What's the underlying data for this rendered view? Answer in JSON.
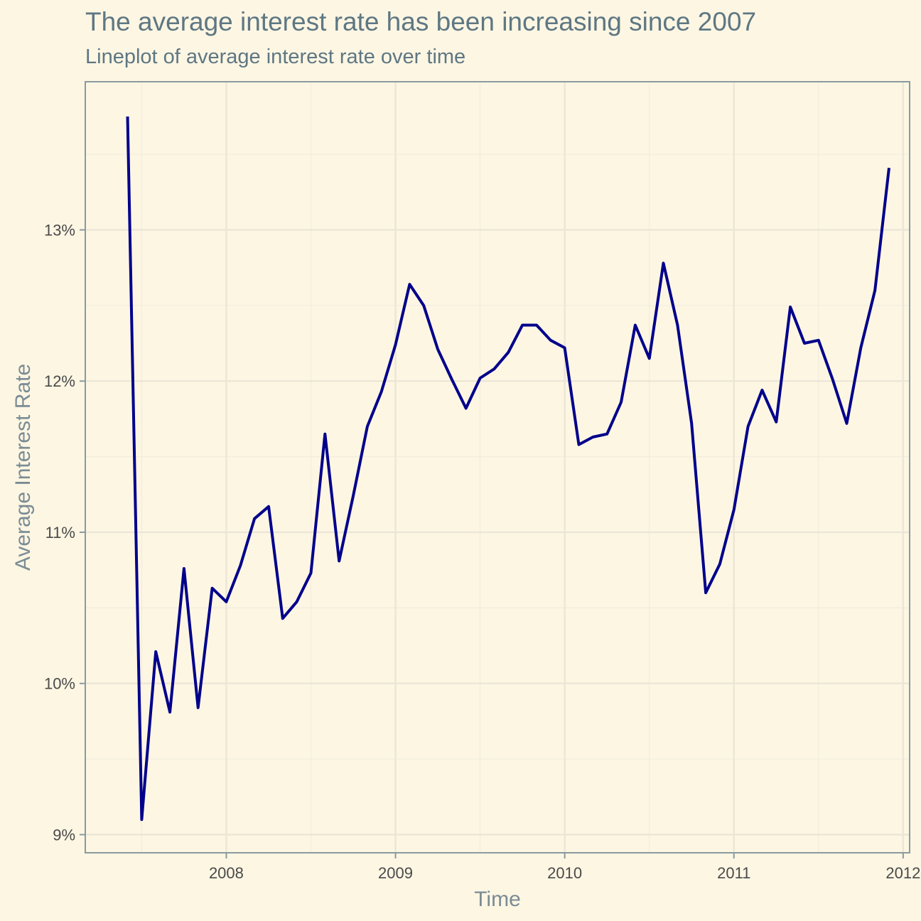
{
  "chart_data": {
    "type": "line",
    "title": "The average interest rate has been increasing since 2007",
    "subtitle": "Lineplot of average interest rate over time",
    "xlabel": "Time",
    "ylabel": "Average Interest Rate",
    "x_ticks": [
      "2008",
      "2009",
      "2010",
      "2011",
      "2012"
    ],
    "y_ticks": [
      "9%",
      "10%",
      "11%",
      "12%",
      "13%"
    ],
    "xlim": [
      "2007-03-01",
      "2012-01-15"
    ],
    "ylim": [
      8.88,
      13.98
    ],
    "grid": true,
    "line_color": "#00008B",
    "series": [
      {
        "x": [
          "2007-06",
          "2007-07",
          "2007-08",
          "2007-09",
          "2007-10",
          "2007-11",
          "2007-12",
          "2008-01",
          "2008-02",
          "2008-03",
          "2008-04",
          "2008-05",
          "2008-06",
          "2008-07",
          "2008-08",
          "2008-09",
          "2008-10",
          "2008-11",
          "2008-12",
          "2009-01",
          "2009-02",
          "2009-03",
          "2009-04",
          "2009-05",
          "2009-06",
          "2009-07",
          "2009-08",
          "2009-09",
          "2009-10",
          "2009-11",
          "2009-12",
          "2010-01",
          "2010-02",
          "2010-03",
          "2010-04",
          "2010-05",
          "2010-06",
          "2010-07",
          "2010-08",
          "2010-09",
          "2010-10",
          "2010-11",
          "2010-12",
          "2011-01",
          "2011-02",
          "2011-03",
          "2011-04",
          "2011-05",
          "2011-06",
          "2011-07",
          "2011-08",
          "2011-09",
          "2011-10",
          "2011-11",
          "2011-12"
        ],
        "y": [
          13.75,
          9.1,
          10.21,
          9.81,
          10.76,
          9.84,
          10.63,
          10.54,
          10.78,
          11.09,
          11.17,
          10.43,
          10.54,
          10.73,
          11.65,
          10.81,
          11.24,
          11.7,
          11.93,
          12.24,
          12.64,
          12.5,
          12.21,
          12.01,
          11.82,
          12.02,
          12.08,
          12.19,
          12.37,
          12.37,
          12.27,
          12.22,
          11.58,
          11.63,
          11.65,
          11.86,
          12.37,
          12.15,
          12.78,
          12.37,
          11.72,
          10.6,
          10.79,
          11.15,
          11.7,
          11.94,
          11.73,
          12.49,
          12.25,
          12.27,
          12.01,
          11.72,
          12.22,
          12.6,
          13.41
        ]
      }
    ]
  }
}
